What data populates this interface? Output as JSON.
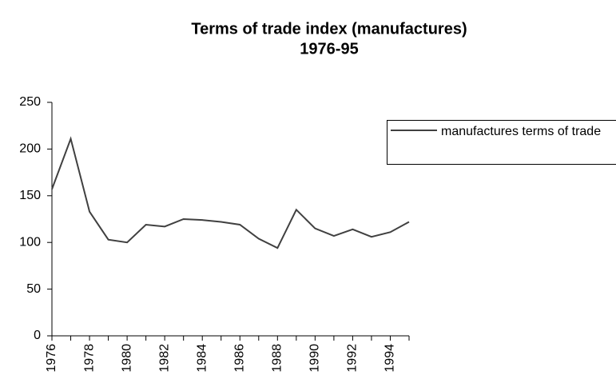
{
  "chart_data": {
    "type": "line",
    "title": "Terms of trade index (manufactures)",
    "subtitle": "1976-95",
    "categories": [
      "1976",
      null,
      "1978",
      null,
      "1980",
      null,
      "1982",
      null,
      "1984",
      null,
      "1986",
      null,
      "1988",
      null,
      "1990",
      null,
      "1992",
      null,
      "1994",
      null
    ],
    "series": [
      {
        "name": "manufactures terms of trade",
        "color": "#404040",
        "values": [
          157,
          211,
          133,
          103,
          100,
          119,
          117,
          125,
          124,
          122,
          119,
          104,
          94,
          135,
          115,
          107,
          114,
          106,
          111,
          122
        ]
      }
    ],
    "ylim": [
      0,
      250
    ],
    "yticks": [
      0,
      50,
      100,
      150,
      200,
      250
    ],
    "grid": false,
    "legend": "right"
  }
}
